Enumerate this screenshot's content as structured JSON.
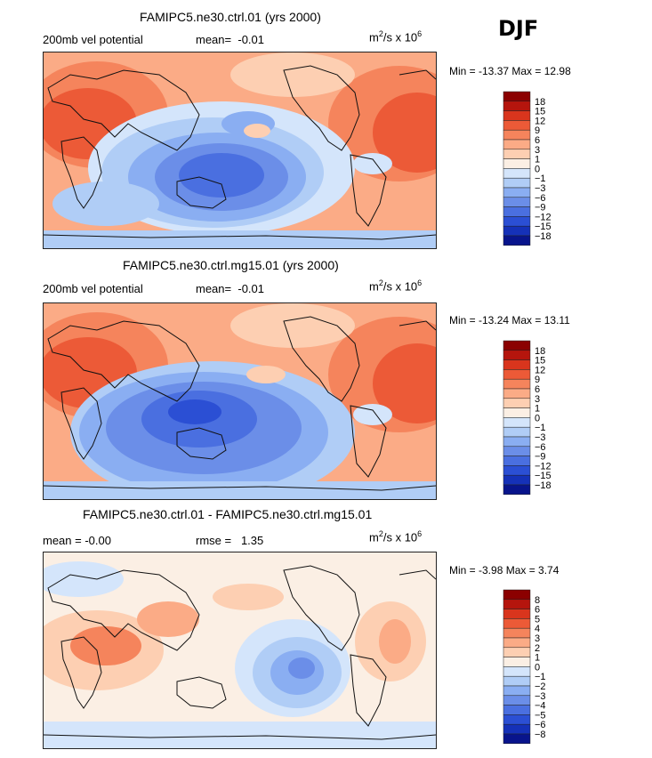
{
  "season": "DJF",
  "panels": [
    {
      "title": "FAMIPC5.ne30.ctrl.01 (yrs 2000)",
      "left_label": "200mb vel potential",
      "stat_label": "mean=",
      "stat_value": "-0.01",
      "units_base": "m",
      "units_sup": "2",
      "units_mid": "/s x 10",
      "units_sup2": "6",
      "minmax": "Min = -13.37 Max = 12.98",
      "colorbar_labels": [
        "18",
        "15",
        "12",
        "9",
        "6",
        "3",
        "1",
        "0",
        "-1",
        "-3",
        "-6",
        "-9",
        "-12",
        "-15",
        "-18"
      ],
      "palette": [
        "#8b0000",
        "#b5150d",
        "#d9351d",
        "#ec5a37",
        "#f5845c",
        "#fbab86",
        "#fdcfb2",
        "#fbefe4",
        "#d4e5fb",
        "#b0cdf6",
        "#8aaef2",
        "#6b8ee8",
        "#4a6fe0",
        "#2b4fd4",
        "#1531b8",
        "#08148c"
      ]
    },
    {
      "title": "FAMIPC5.ne30.ctrl.mg15.01 (yrs 2000)",
      "left_label": "200mb vel potential",
      "stat_label": "mean=",
      "stat_value": "-0.01",
      "units_base": "m",
      "units_sup": "2",
      "units_mid": "/s x 10",
      "units_sup2": "6",
      "minmax": "Min = -13.24 Max = 13.11",
      "colorbar_labels": [
        "18",
        "15",
        "12",
        "9",
        "6",
        "3",
        "1",
        "0",
        "-1",
        "-3",
        "-6",
        "-9",
        "-12",
        "-15",
        "-18"
      ],
      "palette": [
        "#8b0000",
        "#b5150d",
        "#d9351d",
        "#ec5a37",
        "#f5845c",
        "#fbab86",
        "#fdcfb2",
        "#fbefe4",
        "#d4e5fb",
        "#b0cdf6",
        "#8aaef2",
        "#6b8ee8",
        "#4a6fe0",
        "#2b4fd4",
        "#1531b8",
        "#08148c"
      ]
    },
    {
      "title": "FAMIPC5.ne30.ctrl.01 - FAMIPC5.ne30.ctrl.mg15.01",
      "left_label": "mean = -0.00",
      "stat_label": "rmse =",
      "stat_value": "1.35",
      "units_base": "m",
      "units_sup": "2",
      "units_mid": "/s x 10",
      "units_sup2": "6",
      "minmax": "Min = -3.98 Max = 3.74",
      "colorbar_labels": [
        "8",
        "6",
        "5",
        "4",
        "3",
        "2",
        "1",
        "0",
        "-1",
        "-2",
        "-3",
        "-4",
        "-5",
        "-6",
        "-8"
      ],
      "palette": [
        "#8b0000",
        "#b5150d",
        "#d9351d",
        "#ec5a37",
        "#f5845c",
        "#fbab86",
        "#fdcfb2",
        "#fbefe4",
        "#d4e5fb",
        "#b0cdf6",
        "#8aaef2",
        "#6b8ee8",
        "#4a6fe0",
        "#2b4fd4",
        "#1531b8",
        "#08148c"
      ]
    }
  ]
}
